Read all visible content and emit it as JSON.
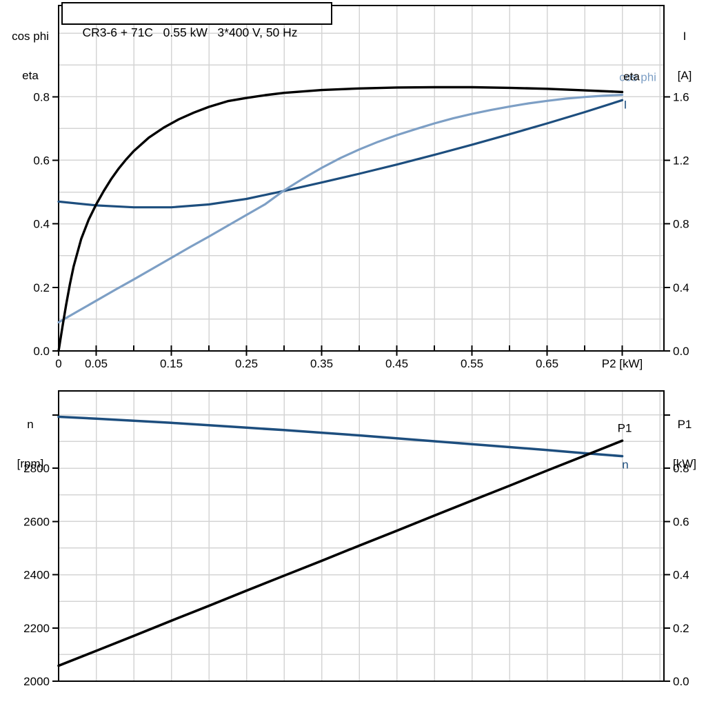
{
  "colors": {
    "black": "#000000",
    "dark_blue": "#1d4e7e",
    "light_blue": "#7d9fc5",
    "grid": "#d4d4d4"
  },
  "top_chart": {
    "title": "CR3-6 + 71C   0.55 kW   3*400 V, 50 Hz",
    "left_axis_label_1": "cos phi",
    "left_axis_label_2": "eta",
    "right_axis_label_1": "I",
    "right_axis_label_2": "[A]",
    "x_axis_label": "P2 [kW]",
    "curve_labels": {
      "eta": "eta",
      "cos_phi": "cos phi",
      "current": "I"
    }
  },
  "bottom_chart": {
    "left_axis_label_1": "n",
    "left_axis_label_2": "[rpm]",
    "right_axis_label_1": "P1",
    "right_axis_label_2": "[kW]",
    "curve_labels": {
      "p1": "P1",
      "n": "n"
    }
  },
  "chart_data": [
    {
      "type": "line",
      "title": "CR3-6 + 71C   0.55 kW   3*400 V, 50 Hz",
      "xlabel": "P2 [kW]",
      "ylabel_left": "cos phi / eta",
      "ylabel_right": "I [A]",
      "xlim": [
        0,
        0.8055
      ],
      "ylim_left": [
        0,
        1.087
      ],
      "ylim_right": [
        0,
        2.174
      ],
      "x_grid_step": 0.05,
      "y_grid_step_left": 0.1,
      "legend_position": "curve-end-labels",
      "x_ticks": {
        "values": [
          0,
          0.05,
          0.1,
          0.15,
          0.2,
          0.25,
          0.3,
          0.35,
          0.4,
          0.45,
          0.5,
          0.55,
          0.6,
          0.65,
          0.7,
          0.75
        ],
        "labels": [
          "0",
          "0.05",
          "",
          "0.15",
          "",
          "0.25",
          "",
          "0.35",
          "",
          "0.45",
          "",
          "0.55",
          "",
          "0.65",
          "",
          "P2 [kW]"
        ]
      },
      "y_ticks_left": {
        "values": [
          0,
          0.2,
          0.4,
          0.6,
          0.8
        ],
        "labels": [
          "0.0",
          "0.2",
          "0.4",
          "0.6",
          "0.8"
        ]
      },
      "y_ticks_right": {
        "values": [
          0,
          0.4,
          0.8,
          1.2,
          1.6
        ],
        "labels": [
          "0.0",
          "0.4",
          "0.8",
          "1.2",
          "1.6"
        ]
      },
      "series": [
        {
          "name": "I",
          "axis": "right",
          "color_key": "dark_blue",
          "stroke_width": 3.2,
          "x": [
            0,
            0.05,
            0.1,
            0.15,
            0.2,
            0.25,
            0.3,
            0.35,
            0.4,
            0.45,
            0.5,
            0.55,
            0.6,
            0.65,
            0.7,
            0.75
          ],
          "y": [
            0.94,
            0.916,
            0.904,
            0.904,
            0.922,
            0.957,
            1.007,
            1.06,
            1.115,
            1.173,
            1.234,
            1.298,
            1.364,
            1.432,
            1.503,
            1.578
          ]
        },
        {
          "name": "cos phi",
          "axis": "left",
          "color_key": "light_blue",
          "stroke_width": 3.2,
          "x": [
            0,
            0.025,
            0.05,
            0.075,
            0.1,
            0.125,
            0.15,
            0.175,
            0.2,
            0.225,
            0.25,
            0.275,
            0.3,
            0.325,
            0.35,
            0.375,
            0.4,
            0.425,
            0.45,
            0.475,
            0.5,
            0.525,
            0.55,
            0.575,
            0.6,
            0.625,
            0.65,
            0.675,
            0.7,
            0.725,
            0.75
          ],
          "y": [
            0.09,
            0.124,
            0.158,
            0.192,
            0.225,
            0.259,
            0.293,
            0.327,
            0.36,
            0.394,
            0.428,
            0.462,
            0.505,
            0.542,
            0.576,
            0.607,
            0.634,
            0.658,
            0.679,
            0.698,
            0.716,
            0.732,
            0.746,
            0.758,
            0.769,
            0.779,
            0.787,
            0.794,
            0.799,
            0.803,
            0.806
          ]
        },
        {
          "name": "eta",
          "axis": "left",
          "color_key": "black",
          "stroke_width": 3.4,
          "x": [
            0,
            0.005,
            0.01,
            0.015,
            0.02,
            0.03,
            0.04,
            0.05,
            0.06,
            0.07,
            0.08,
            0.09,
            0.1,
            0.12,
            0.14,
            0.16,
            0.18,
            0.2,
            0.225,
            0.25,
            0.275,
            0.3,
            0.35,
            0.4,
            0.45,
            0.5,
            0.55,
            0.6,
            0.65,
            0.7,
            0.75
          ],
          "y": [
            0,
            0.075,
            0.145,
            0.21,
            0.266,
            0.352,
            0.413,
            0.461,
            0.503,
            0.541,
            0.574,
            0.603,
            0.629,
            0.671,
            0.703,
            0.729,
            0.75,
            0.768,
            0.786,
            0.796,
            0.805,
            0.812,
            0.821,
            0.826,
            0.829,
            0.83,
            0.83,
            0.828,
            0.825,
            0.82,
            0.815
          ]
        }
      ]
    },
    {
      "type": "line",
      "title": "",
      "xlabel": "",
      "ylabel_left": "n [rpm]",
      "ylabel_right": "P1 [kW]",
      "xlim": [
        0,
        0.8055
      ],
      "ylim_left": [
        2000,
        3090
      ],
      "ylim_right": [
        0,
        1.09
      ],
      "x_grid_step": 0.05,
      "y_grid_step_left": 100,
      "legend_position": "curve-end-labels",
      "x_ticks": {
        "values": [],
        "labels": []
      },
      "y_ticks_left": {
        "values": [
          2000,
          2200,
          2400,
          2600,
          2800,
          3000
        ],
        "labels": [
          "2000",
          "2200",
          "2400",
          "2600",
          "2800",
          ""
        ]
      },
      "y_ticks_right": {
        "values": [
          0,
          0.2,
          0.4,
          0.6,
          0.8,
          1.0
        ],
        "labels": [
          "0.0",
          "0.2",
          "0.4",
          "0.6",
          "0.8",
          ""
        ]
      },
      "series": [
        {
          "name": "n",
          "axis": "left",
          "color_key": "dark_blue",
          "stroke_width": 3.5,
          "x": [
            0,
            0.05,
            0.1,
            0.15,
            0.2,
            0.25,
            0.3,
            0.35,
            0.4,
            0.45,
            0.5,
            0.55,
            0.6,
            0.65,
            0.7,
            0.75
          ],
          "y": [
            2993,
            2986,
            2978,
            2970,
            2961,
            2952,
            2943,
            2933,
            2923,
            2912,
            2901,
            2890,
            2879,
            2868,
            2856,
            2845
          ]
        },
        {
          "name": "P1",
          "axis": "right",
          "color_key": "black",
          "stroke_width": 3.6,
          "x": [
            0,
            0.05,
            0.1,
            0.15,
            0.2,
            0.25,
            0.3,
            0.35,
            0.4,
            0.45,
            0.5,
            0.55,
            0.6,
            0.65,
            0.7,
            0.75
          ],
          "y": [
            0.058,
            0.114,
            0.17,
            0.227,
            0.283,
            0.34,
            0.396,
            0.452,
            0.509,
            0.565,
            0.622,
            0.678,
            0.734,
            0.791,
            0.847,
            0.903
          ]
        }
      ]
    }
  ]
}
